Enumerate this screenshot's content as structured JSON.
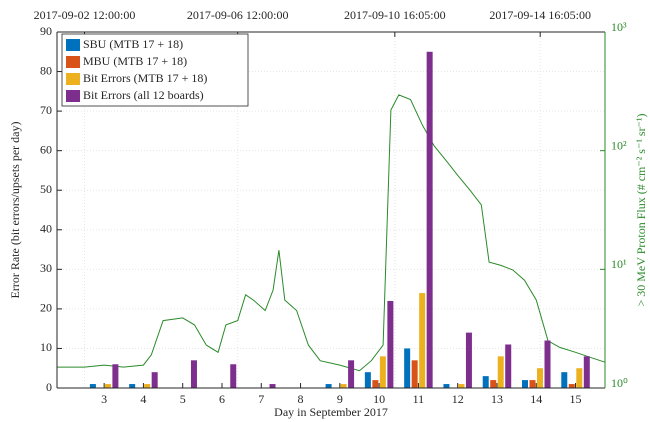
{
  "chart_data": {
    "type": "bar",
    "x_label": "Day in September 2017",
    "y_label": "Error Rate (bit errors/upsets per day)",
    "y2_label": "> 30 MeV Proton Flux (# cm⁻² s⁻¹ sr⁻¹)",
    "x": [
      3,
      4,
      5,
      6,
      7,
      8,
      9,
      10,
      11,
      12,
      13,
      14,
      15
    ],
    "xlim": [
      1.8,
      15.75
    ],
    "xticks": [
      3,
      4,
      5,
      6,
      7,
      8,
      9,
      10,
      11,
      12,
      13,
      14,
      15
    ],
    "x2ticks": [
      {
        "value": 2.5,
        "label": "2017-09-02 12:00:00"
      },
      {
        "value": 6.4,
        "label": "2017-09-06 12:00:00"
      },
      {
        "value": 10.4,
        "label": "2017-09-10 16:05:00"
      },
      {
        "value": 14.1,
        "label": "2017-09-14 16:05:00"
      }
    ],
    "ylim": [
      0,
      90
    ],
    "yticks": [
      0,
      10,
      20,
      30,
      40,
      50,
      60,
      70,
      80,
      90
    ],
    "y2lim": [
      1,
      1000
    ],
    "y2ticks": [
      {
        "value": 1,
        "label": "10⁰"
      },
      {
        "value": 10,
        "label": "10¹"
      },
      {
        "value": 100,
        "label": "10²"
      },
      {
        "value": 1000,
        "label": "10³"
      }
    ],
    "y2_log": true,
    "grid": true,
    "legend": "upper left",
    "series": [
      {
        "name": "SBU (MTB 17 + 18)",
        "color": "#0072bd",
        "values": [
          1,
          1,
          0,
          0,
          0,
          0,
          1,
          4,
          10,
          1,
          3,
          2,
          4
        ]
      },
      {
        "name": "MBU (MTB 17 + 18)",
        "color": "#d95319",
        "values": [
          0,
          0,
          0,
          0,
          0,
          0,
          0,
          2,
          7,
          0,
          2,
          2,
          1
        ]
      },
      {
        "name": "Bit Errors (MTB 17 + 18)",
        "color": "#edb120",
        "values": [
          1,
          1,
          0,
          0,
          0,
          0,
          1,
          8,
          24,
          1,
          8,
          5,
          5
        ]
      },
      {
        "name": "Bit Errors (all 12 boards)",
        "color": "#7e2f8e",
        "values": [
          6,
          4,
          7,
          6,
          1,
          0,
          7,
          22,
          85,
          14,
          11,
          12,
          8
        ]
      },
      {
        "type": "line",
        "axis": "y2",
        "color": "#2a8a2a",
        "x": [
          1.8,
          2.5,
          3,
          3.5,
          4,
          4.2,
          4.5,
          5,
          5.3,
          5.6,
          5.9,
          6.1,
          6.4,
          6.6,
          6.8,
          7.1,
          7.3,
          7.45,
          7.6,
          7.9,
          8.2,
          8.5,
          9,
          9.5,
          9.8,
          10.1,
          10.3,
          10.5,
          10.8,
          11.1,
          11.4,
          11.7,
          12,
          12.3,
          12.6,
          12.8,
          13.1,
          13.4,
          13.7,
          14,
          14.3,
          14.6,
          15,
          15.4,
          15.75
        ],
        "values": [
          1.5,
          1.5,
          1.56,
          1.5,
          1.56,
          1.9,
          3.7,
          3.9,
          3.4,
          2.3,
          2.0,
          3.4,
          3.7,
          6.1,
          5.5,
          4.5,
          6.7,
          14.5,
          5.5,
          4.5,
          2.3,
          1.7,
          1.56,
          1.4,
          1.7,
          2.3,
          220,
          295,
          270,
          165,
          110,
          83,
          62,
          47,
          35,
          11.5,
          10.8,
          9.9,
          8.1,
          5.5,
          2.5,
          2.2,
          2.0,
          1.8,
          1.65
        ]
      }
    ]
  }
}
